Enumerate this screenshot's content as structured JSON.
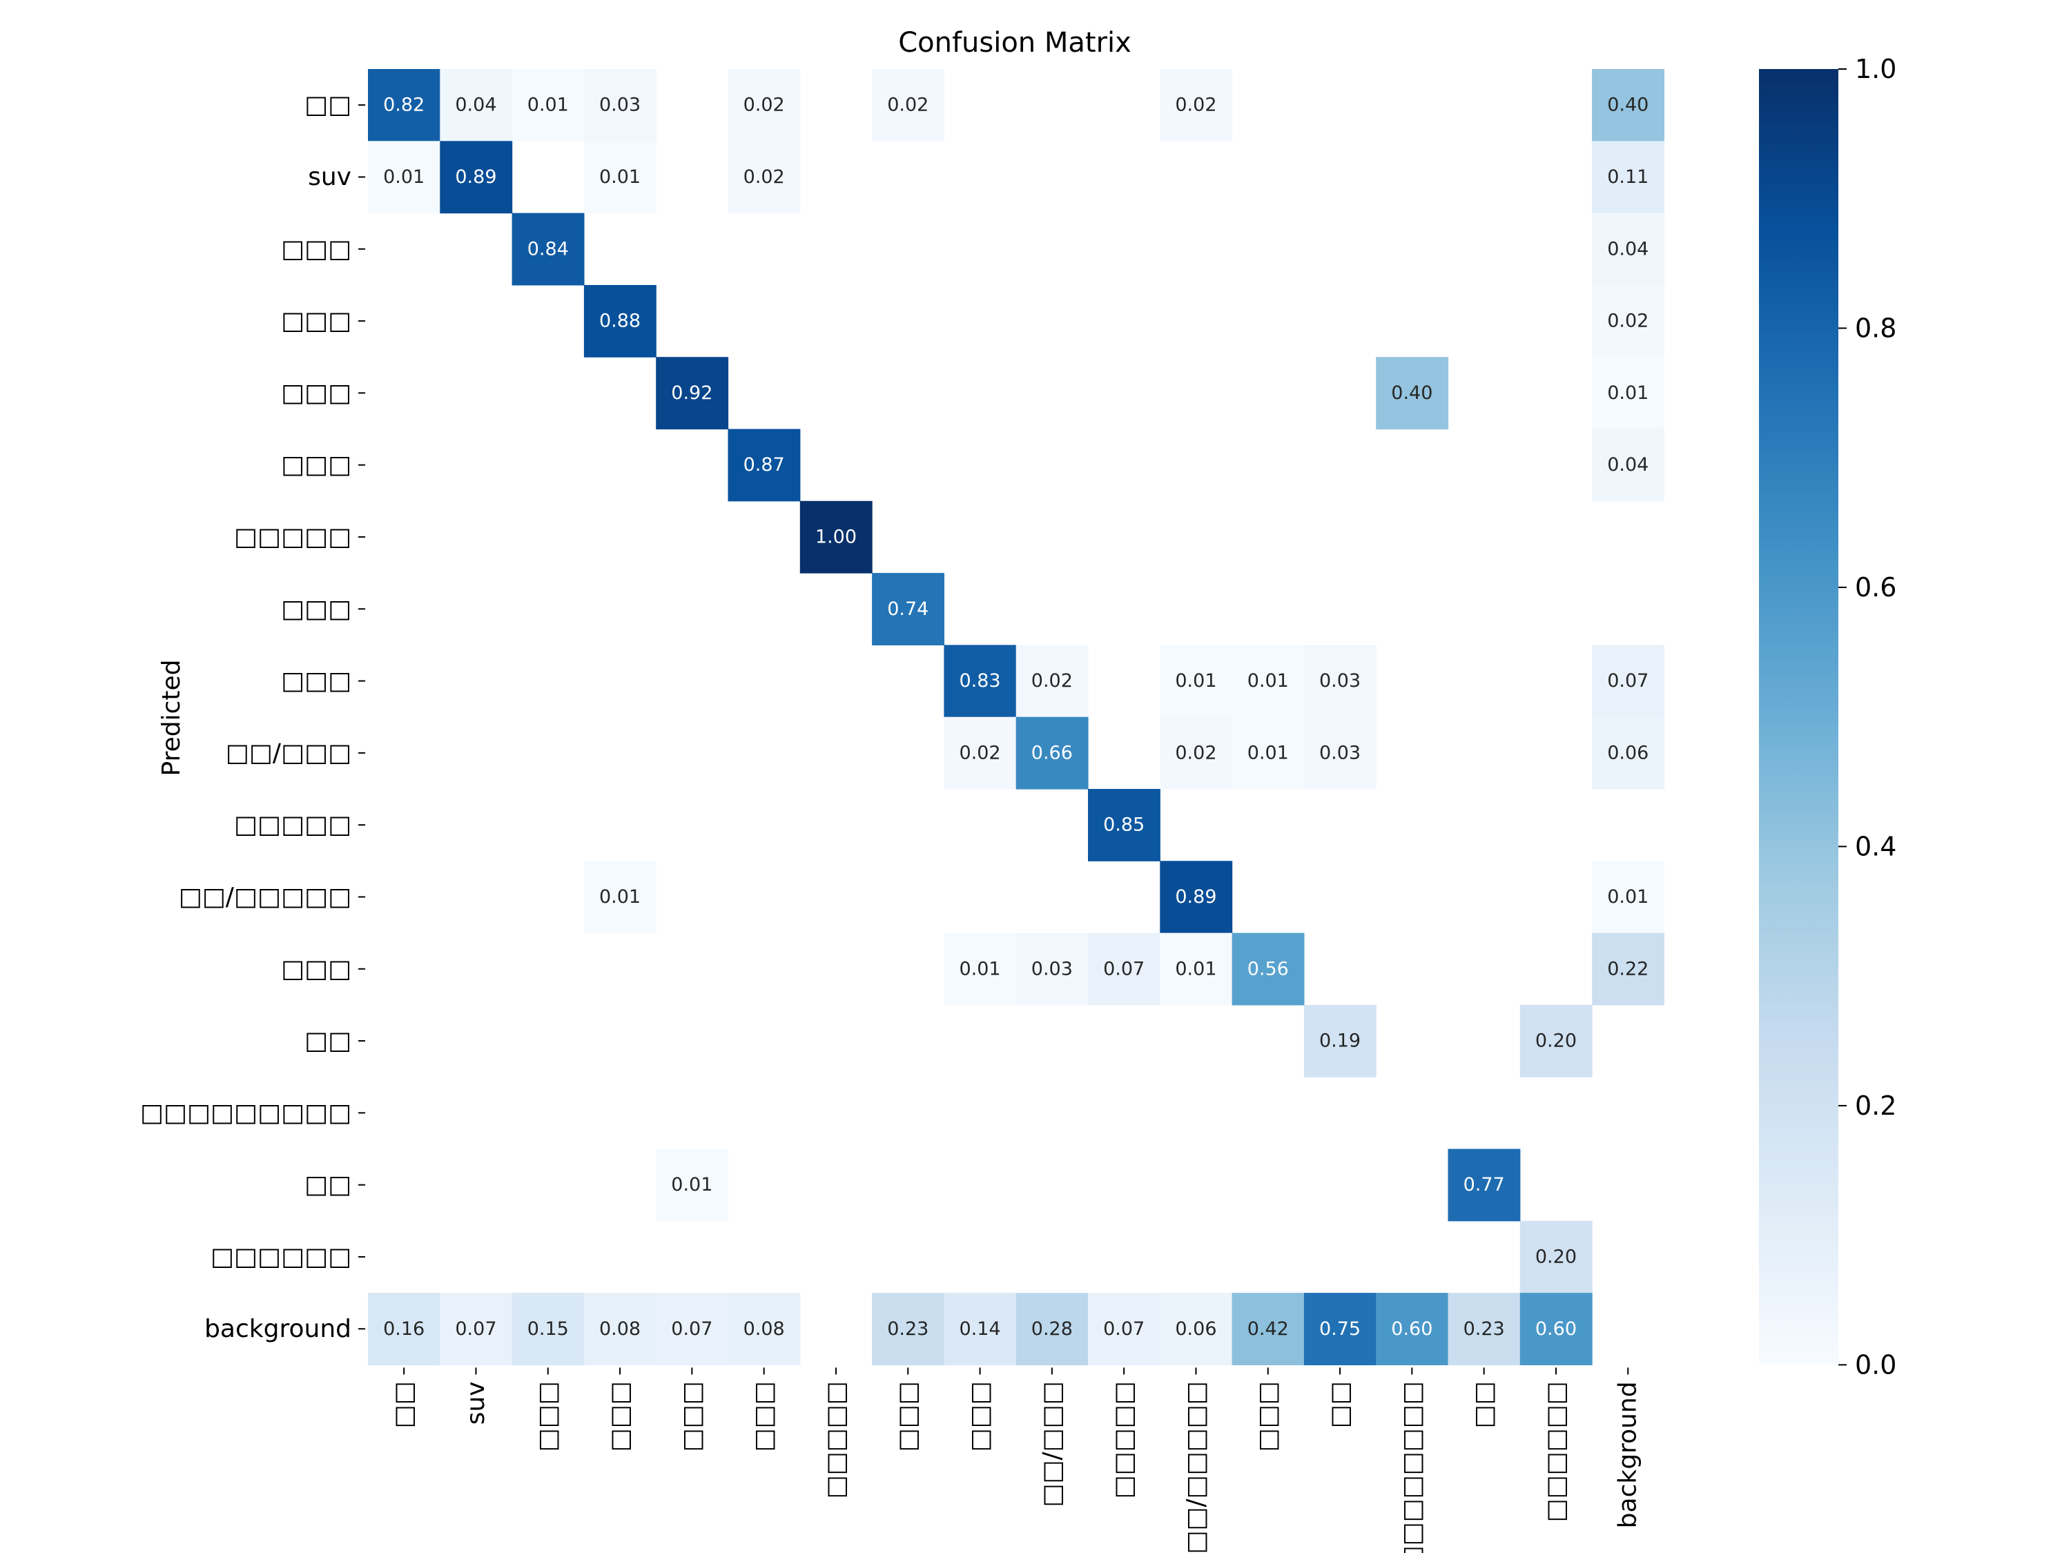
{
  "chart_data": {
    "type": "heatmap",
    "title": "Confusion Matrix",
    "xlabel": "",
    "ylabel": "Predicted",
    "row_labels": [
      "□□",
      "suv",
      "□□□",
      "□□□",
      "□□□",
      "□□□",
      "□□□□□",
      "□□□",
      "□□□",
      "□□/□□□",
      "□□□□□",
      "□□/□□□□□",
      "□□□",
      "□□",
      "□□□□□□□□□",
      "□□",
      "□□□□□□",
      "background"
    ],
    "col_labels": [
      "□□",
      "suv",
      "□□□",
      "□□□",
      "□□□",
      "□□□",
      "□□□□□",
      "□□□",
      "□□□",
      "□□/□□□",
      "□□□□□",
      "□□/□□□□□",
      "□□□",
      "□□",
      "□□□□□□□□□",
      "□□",
      "□□□□□□",
      "background"
    ],
    "matrix": [
      [
        0.82,
        0.04,
        0.01,
        0.03,
        null,
        0.02,
        null,
        0.02,
        null,
        null,
        null,
        0.02,
        null,
        null,
        null,
        null,
        null,
        0.4
      ],
      [
        0.01,
        0.89,
        null,
        0.01,
        null,
        0.02,
        null,
        null,
        null,
        null,
        null,
        null,
        null,
        null,
        null,
        null,
        null,
        0.11
      ],
      [
        null,
        null,
        0.84,
        null,
        null,
        null,
        null,
        null,
        null,
        null,
        null,
        null,
        null,
        null,
        null,
        null,
        null,
        0.04
      ],
      [
        null,
        null,
        null,
        0.88,
        null,
        null,
        null,
        null,
        null,
        null,
        null,
        null,
        null,
        null,
        null,
        null,
        null,
        0.02
      ],
      [
        null,
        null,
        null,
        null,
        0.92,
        null,
        null,
        null,
        null,
        null,
        null,
        null,
        null,
        null,
        0.4,
        null,
        null,
        0.01
      ],
      [
        null,
        null,
        null,
        null,
        null,
        0.87,
        null,
        null,
        null,
        null,
        null,
        null,
        null,
        null,
        null,
        null,
        null,
        0.04
      ],
      [
        null,
        null,
        null,
        null,
        null,
        null,
        1.0,
        null,
        null,
        null,
        null,
        null,
        null,
        null,
        null,
        null,
        null,
        null
      ],
      [
        null,
        null,
        null,
        null,
        null,
        null,
        null,
        0.74,
        null,
        null,
        null,
        null,
        null,
        null,
        null,
        null,
        null,
        null
      ],
      [
        null,
        null,
        null,
        null,
        null,
        null,
        null,
        null,
        0.83,
        0.02,
        null,
        0.01,
        0.01,
        0.03,
        null,
        null,
        null,
        0.07
      ],
      [
        null,
        null,
        null,
        null,
        null,
        null,
        null,
        null,
        0.02,
        0.66,
        null,
        0.02,
        0.01,
        0.03,
        null,
        null,
        null,
        0.06
      ],
      [
        null,
        null,
        null,
        null,
        null,
        null,
        null,
        null,
        null,
        null,
        0.85,
        null,
        null,
        null,
        null,
        null,
        null,
        null
      ],
      [
        null,
        null,
        null,
        0.01,
        null,
        null,
        null,
        null,
        null,
        null,
        null,
        0.89,
        null,
        null,
        null,
        null,
        null,
        0.01
      ],
      [
        null,
        null,
        null,
        null,
        null,
        null,
        null,
        null,
        0.01,
        0.03,
        0.07,
        0.01,
        0.56,
        null,
        null,
        null,
        null,
        0.22
      ],
      [
        null,
        null,
        null,
        null,
        null,
        null,
        null,
        null,
        null,
        null,
        null,
        null,
        null,
        0.19,
        null,
        null,
        0.2,
        null
      ],
      [
        null,
        null,
        null,
        null,
        null,
        null,
        null,
        null,
        null,
        null,
        null,
        null,
        null,
        null,
        null,
        null,
        null,
        null
      ],
      [
        null,
        null,
        null,
        null,
        0.01,
        null,
        null,
        null,
        null,
        null,
        null,
        null,
        null,
        null,
        null,
        0.77,
        null,
        null
      ],
      [
        null,
        null,
        null,
        null,
        null,
        null,
        null,
        null,
        null,
        null,
        null,
        null,
        null,
        null,
        null,
        null,
        0.2,
        null
      ],
      [
        0.16,
        0.07,
        0.15,
        0.08,
        0.07,
        0.08,
        null,
        0.23,
        0.14,
        0.28,
        0.07,
        0.06,
        0.42,
        0.75,
        0.6,
        0.23,
        0.6,
        null
      ]
    ],
    "colorbar": {
      "range": [
        0.0,
        1.0
      ],
      "ticks": [
        "0.0",
        "0.2",
        "0.4",
        "0.6",
        "0.8",
        "1.0"
      ],
      "colormap": "Blues",
      "color_low": "#f7fbff",
      "color_high": "#08306b"
    },
    "grid": false,
    "value_format": "0.00"
  }
}
